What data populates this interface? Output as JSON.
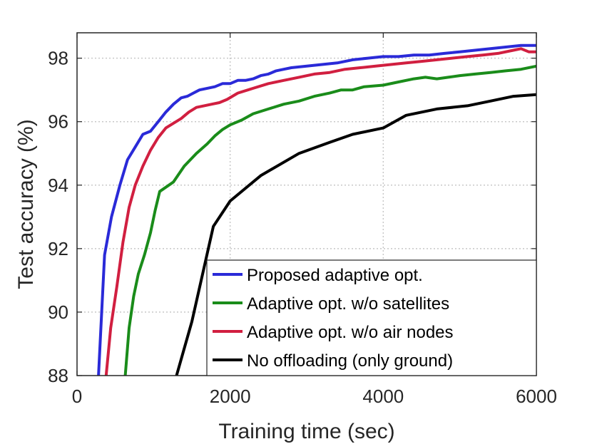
{
  "chart_data": {
    "type": "line",
    "title": "",
    "xlabel": "Training time (sec)",
    "ylabel": "Test accuracy (%)",
    "xlim": [
      0,
      6000
    ],
    "ylim": [
      88,
      98.8
    ],
    "xticks": [
      0,
      2000,
      4000,
      6000
    ],
    "yticks": [
      88,
      90,
      92,
      94,
      96,
      98
    ],
    "xtick_labels": [
      "0",
      "2000",
      "4000",
      "6000"
    ],
    "ytick_labels": [
      "88",
      "90",
      "92",
      "94",
      "96",
      "98"
    ],
    "grid": true,
    "legend_position": "bottom-right",
    "series": [
      {
        "name": "Proposed adaptive opt.",
        "color": "#2a2ad8",
        "x": [
          280,
          360,
          450,
          560,
          660,
          760,
          860,
          960,
          1060,
          1160,
          1260,
          1360,
          1440,
          1520,
          1600,
          1700,
          1800,
          1900,
          2000,
          2100,
          2200,
          2300,
          2400,
          2500,
          2600,
          2700,
          2800,
          3000,
          3200,
          3400,
          3600,
          3800,
          4000,
          4200,
          4400,
          4600,
          4800,
          5000,
          5200,
          5400,
          5600,
          5800,
          6000
        ],
        "y": [
          88.0,
          91.8,
          93.0,
          94.0,
          94.8,
          95.2,
          95.6,
          95.7,
          96.0,
          96.3,
          96.55,
          96.75,
          96.8,
          96.9,
          97.0,
          97.05,
          97.1,
          97.2,
          97.2,
          97.3,
          97.3,
          97.35,
          97.45,
          97.5,
          97.6,
          97.65,
          97.7,
          97.75,
          97.8,
          97.85,
          97.95,
          98.0,
          98.05,
          98.05,
          98.1,
          98.1,
          98.15,
          98.2,
          98.25,
          98.3,
          98.35,
          98.4,
          98.4
        ]
      },
      {
        "name": "Adaptive opt. w/o satellites",
        "color": "#1a8c1a",
        "x": [
          630,
          680,
          740,
          800,
          880,
          960,
          1020,
          1080,
          1140,
          1260,
          1400,
          1560,
          1700,
          1800,
          1900,
          2000,
          2150,
          2300,
          2500,
          2700,
          2900,
          3100,
          3300,
          3450,
          3600,
          3750,
          4000,
          4200,
          4400,
          4550,
          4700,
          4850,
          5000,
          5200,
          5400,
          5600,
          5800,
          6000
        ],
        "y": [
          88.0,
          89.5,
          90.5,
          91.2,
          91.8,
          92.5,
          93.2,
          93.8,
          93.9,
          94.1,
          94.6,
          95.0,
          95.3,
          95.55,
          95.75,
          95.9,
          96.05,
          96.25,
          96.4,
          96.55,
          96.65,
          96.8,
          96.9,
          97.0,
          97.0,
          97.1,
          97.15,
          97.25,
          97.35,
          97.4,
          97.35,
          97.4,
          97.45,
          97.5,
          97.55,
          97.6,
          97.65,
          97.75
        ]
      },
      {
        "name": "Adaptive opt. w/o air nodes",
        "color": "#d11f40",
        "x": [
          380,
          440,
          520,
          600,
          680,
          760,
          860,
          960,
          1060,
          1160,
          1260,
          1360,
          1460,
          1560,
          1660,
          1760,
          1860,
          1960,
          2100,
          2300,
          2500,
          2700,
          2900,
          3100,
          3300,
          3500,
          3700,
          3900,
          4100,
          4300,
          4500,
          4700,
          4900,
          5100,
          5300,
          5500,
          5700,
          5800,
          5900,
          6000
        ],
        "y": [
          88.0,
          89.5,
          90.8,
          92.2,
          93.3,
          94.0,
          94.6,
          95.1,
          95.5,
          95.8,
          95.95,
          96.1,
          96.3,
          96.45,
          96.5,
          96.55,
          96.6,
          96.7,
          96.9,
          97.05,
          97.2,
          97.3,
          97.4,
          97.5,
          97.55,
          97.65,
          97.7,
          97.75,
          97.8,
          97.85,
          97.9,
          97.95,
          98.0,
          98.05,
          98.1,
          98.15,
          98.25,
          98.3,
          98.2,
          98.2
        ]
      },
      {
        "name": "No offloading (only ground)",
        "color": "#000000",
        "x": [
          1300,
          1500,
          1780,
          2000,
          2400,
          2900,
          3300,
          3600,
          4000,
          4300,
          4700,
          5100,
          5400,
          5700,
          6000
        ],
        "y": [
          88.0,
          89.7,
          92.7,
          93.5,
          94.3,
          95.0,
          95.35,
          95.6,
          95.8,
          96.2,
          96.4,
          96.5,
          96.65,
          96.8,
          96.85
        ]
      }
    ]
  }
}
